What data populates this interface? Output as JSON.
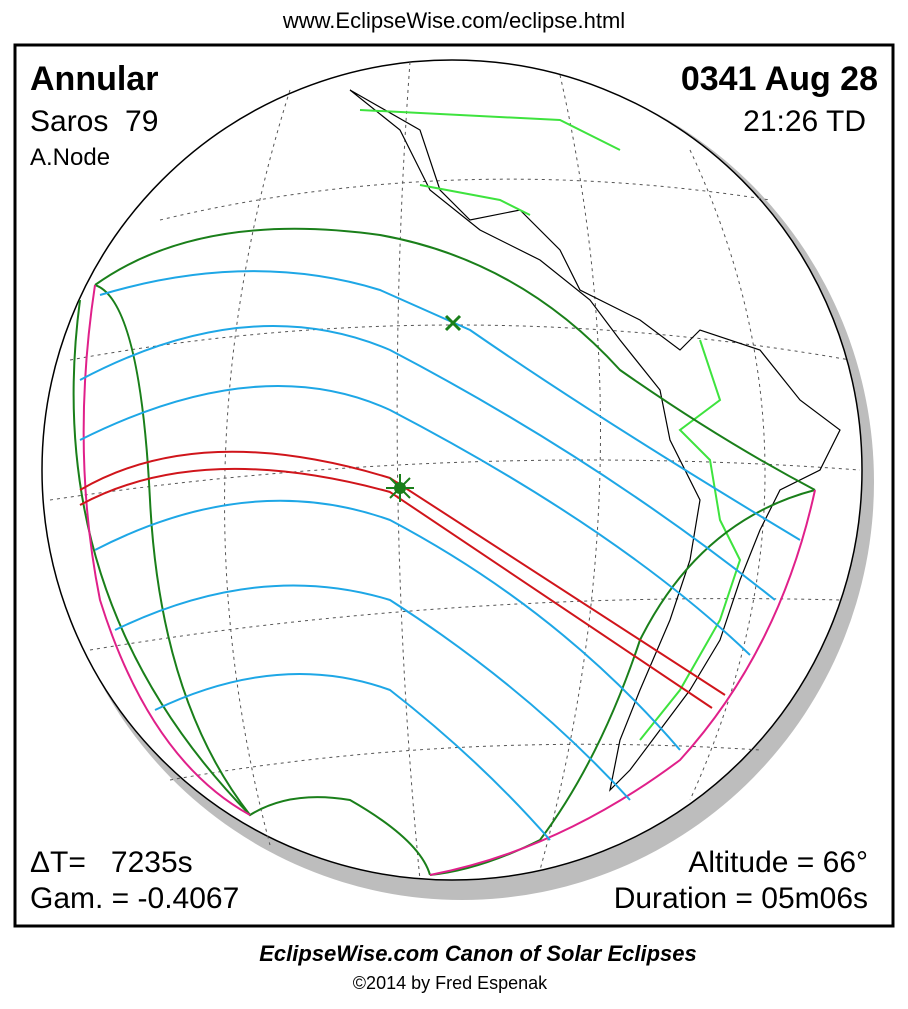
{
  "header": {
    "url": "www.EclipseWise.com/eclipse.html"
  },
  "info": {
    "type": "Annular",
    "saros": "Saros  79",
    "node": "A.Node",
    "date": "0341 Aug 28",
    "time": "21:26 TD",
    "delta_t": "ΔT=   7235s",
    "gamma": "Gam. = -0.4067",
    "altitude": "Altitude = 66°",
    "duration": "Duration = 05m06s"
  },
  "footer": {
    "title": "EclipseWise.com Canon of Solar Eclipses",
    "credit": "©2014 by Fred Espenak"
  }
}
